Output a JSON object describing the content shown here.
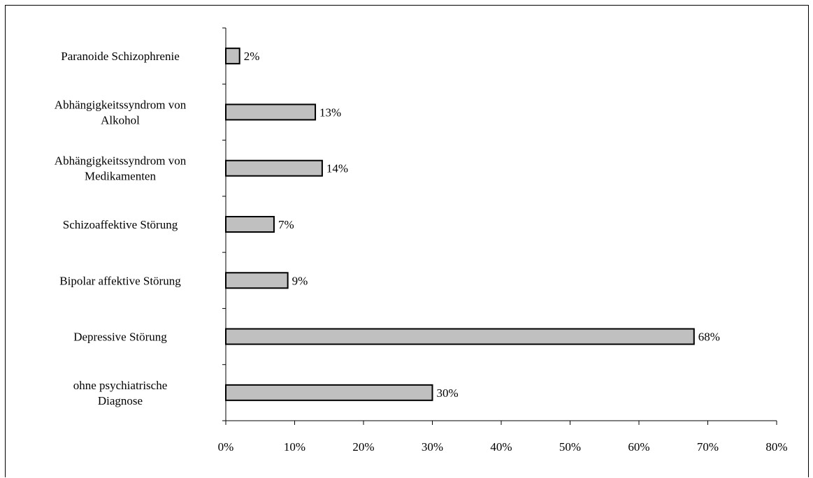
{
  "chart_data": {
    "type": "bar",
    "orientation": "horizontal",
    "title": "",
    "xlabel": "",
    "ylabel": "",
    "categories": [
      [
        "Paranoide Schizophrenie"
      ],
      [
        "Abhängigkeitssyndrom von",
        "Alkohol"
      ],
      [
        "Abhängigkeitssyndrom von",
        "Medikamenten"
      ],
      [
        "Schizoaffektive Störung"
      ],
      [
        "Bipolar affektive Störung"
      ],
      [
        "Depressive Störung"
      ],
      [
        "ohne psychiatrische",
        "Diagnose"
      ]
    ],
    "values": [
      2,
      13,
      14,
      7,
      9,
      68,
      30
    ],
    "value_labels": [
      "2%",
      "13%",
      "14%",
      "7%",
      "9%",
      "68%",
      "30%"
    ],
    "xlim": [
      0,
      80
    ],
    "xticks": [
      0,
      10,
      20,
      30,
      40,
      50,
      60,
      70,
      80
    ],
    "xtick_labels": [
      "0%",
      "10%",
      "20%",
      "30%",
      "40%",
      "50%",
      "60%",
      "70%",
      "80%"
    ],
    "grid": false,
    "legend": "none",
    "bar_color": "#c0c0c0",
    "bar_edge_color": "#000000"
  }
}
